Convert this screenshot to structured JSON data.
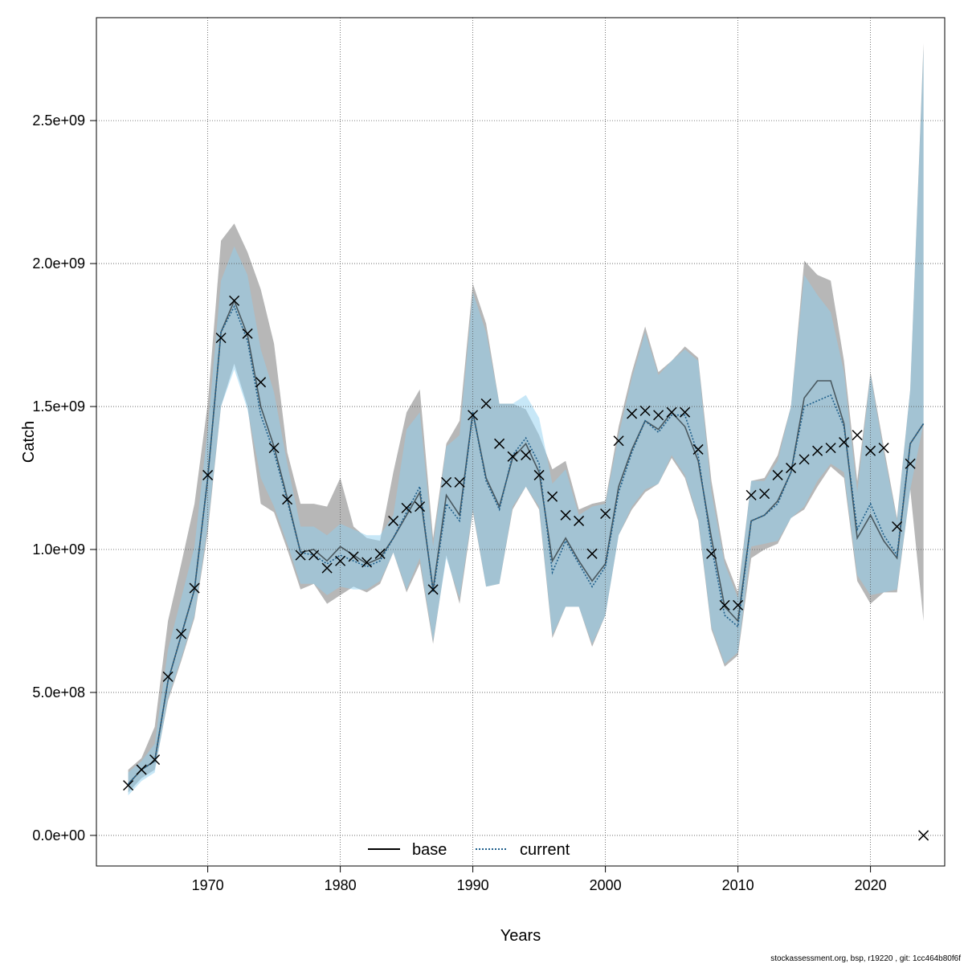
{
  "chart_data": {
    "type": "line",
    "xlabel": "Years",
    "ylabel": "Catch",
    "xlim": [
      1961.6,
      2025.6
    ],
    "ylim": [
      -107000000.0,
      2860000000.0
    ],
    "x_ticks": [
      1970,
      1980,
      1990,
      2000,
      2010,
      2020
    ],
    "x_tick_labels": [
      "1970",
      "1980",
      "1990",
      "2000",
      "2010",
      "2020"
    ],
    "y_ticks": [
      0,
      500000000,
      1000000000,
      1500000000,
      2000000000,
      2500000000
    ],
    "y_tick_labels": [
      "0.0e+00",
      "5.0e+08",
      "1.0e+09",
      "1.5e+09",
      "2.0e+09",
      "2.5e+09"
    ],
    "grid": true,
    "legend_position": "bottom-center",
    "legend": [
      {
        "label": "base",
        "style": "solid",
        "color": "#000000"
      },
      {
        "label": "current",
        "style": "dotted",
        "color": "#1f5f8b"
      }
    ],
    "years": [
      1964,
      1965,
      1966,
      1967,
      1968,
      1969,
      1970,
      1971,
      1972,
      1973,
      1974,
      1975,
      1976,
      1977,
      1978,
      1979,
      1980,
      1981,
      1982,
      1983,
      1984,
      1985,
      1986,
      1987,
      1988,
      1989,
      1990,
      1991,
      1992,
      1993,
      1994,
      1995,
      1996,
      1997,
      1998,
      1999,
      2000,
      2001,
      2002,
      2003,
      2004,
      2005,
      2006,
      2007,
      2008,
      2009,
      2010,
      2011,
      2012,
      2013,
      2014,
      2015,
      2016,
      2017,
      2018,
      2019,
      2020,
      2021,
      2022,
      2023,
      2024
    ],
    "series": [
      {
        "name": "base",
        "color": "#000000",
        "band_color": "#999999",
        "values": [
          180000000,
          230000000,
          260000000,
          540000000,
          700000000,
          860000000,
          1250000000,
          1760000000,
          1870000000,
          1750000000,
          1500000000,
          1360000000,
          1180000000,
          990000000,
          1000000000,
          960000000,
          1010000000,
          980000000,
          950000000,
          970000000,
          1040000000,
          1120000000,
          1200000000,
          860000000,
          1190000000,
          1120000000,
          1480000000,
          1250000000,
          1150000000,
          1320000000,
          1370000000,
          1270000000,
          960000000,
          1040000000,
          960000000,
          890000000,
          950000000,
          1220000000,
          1350000000,
          1450000000,
          1420000000,
          1480000000,
          1430000000,
          1310000000,
          1040000000,
          800000000,
          750000000,
          1100000000,
          1120000000,
          1170000000,
          1270000000,
          1530000000,
          1590000000,
          1590000000,
          1440000000,
          1040000000,
          1120000000,
          1030000000,
          970000000,
          1370000000,
          1440000000
        ],
        "lower": [
          150000000,
          200000000,
          230000000,
          470000000,
          610000000,
          760000000,
          1060000000,
          1500000000,
          1650000000,
          1500000000,
          1160000000,
          1130000000,
          1000000000,
          860000000,
          880000000,
          810000000,
          840000000,
          870000000,
          850000000,
          880000000,
          990000000,
          850000000,
          950000000,
          670000000,
          980000000,
          810000000,
          1130000000,
          870000000,
          880000000,
          1140000000,
          1220000000,
          1140000000,
          690000000,
          800000000,
          800000000,
          660000000,
          770000000,
          1050000000,
          1140000000,
          1200000000,
          1230000000,
          1320000000,
          1250000000,
          1100000000,
          720000000,
          590000000,
          630000000,
          970000000,
          1000000000,
          1020000000,
          1110000000,
          1140000000,
          1220000000,
          1290000000,
          1250000000,
          890000000,
          810000000,
          850000000,
          850000000,
          1210000000,
          750000000
        ],
        "upper": [
          230000000,
          270000000,
          380000000,
          750000000,
          950000000,
          1160000000,
          1510000000,
          2080000000,
          2140000000,
          2040000000,
          1910000000,
          1720000000,
          1340000000,
          1160000000,
          1160000000,
          1150000000,
          1250000000,
          1080000000,
          1040000000,
          1030000000,
          1270000000,
          1480000000,
          1560000000,
          1040000000,
          1370000000,
          1450000000,
          1930000000,
          1790000000,
          1510000000,
          1510000000,
          1490000000,
          1400000000,
          1280000000,
          1310000000,
          1140000000,
          1160000000,
          1170000000,
          1430000000,
          1620000000,
          1780000000,
          1620000000,
          1660000000,
          1710000000,
          1670000000,
          1240000000,
          970000000,
          850000000,
          1240000000,
          1250000000,
          1330000000,
          1500000000,
          2010000000,
          1960000000,
          1940000000,
          1660000000,
          1240000000,
          1620000000,
          1360000000,
          1110000000,
          1560000000,
          2770000000
        ]
      },
      {
        "name": "current",
        "color": "#1f5f8b",
        "band_color": "#8fcff0",
        "values": [
          180000000,
          230000000,
          260000000,
          540000000,
          700000000,
          860000000,
          1250000000,
          1760000000,
          1850000000,
          1730000000,
          1470000000,
          1340000000,
          1170000000,
          990000000,
          980000000,
          950000000,
          980000000,
          960000000,
          940000000,
          960000000,
          1040000000,
          1130000000,
          1220000000,
          850000000,
          1160000000,
          1100000000,
          1480000000,
          1240000000,
          1140000000,
          1330000000,
          1390000000,
          1300000000,
          920000000,
          1030000000,
          950000000,
          870000000,
          940000000,
          1200000000,
          1340000000,
          1450000000,
          1410000000,
          1470000000,
          1470000000,
          1330000000,
          1010000000,
          770000000,
          730000000,
          1100000000,
          1120000000,
          1160000000,
          1270000000,
          1500000000,
          1520000000,
          1540000000,
          1430000000,
          1070000000,
          1160000000,
          1050000000,
          980000000,
          1370000000,
          1440000000
        ],
        "lower": [
          140000000,
          190000000,
          220000000,
          480000000,
          620000000,
          770000000,
          1080000000,
          1500000000,
          1630000000,
          1490000000,
          1250000000,
          1150000000,
          1020000000,
          880000000,
          880000000,
          840000000,
          870000000,
          860000000,
          860000000,
          890000000,
          990000000,
          860000000,
          970000000,
          680000000,
          970000000,
          830000000,
          1140000000,
          870000000,
          880000000,
          1150000000,
          1220000000,
          1150000000,
          700000000,
          800000000,
          800000000,
          670000000,
          770000000,
          1050000000,
          1150000000,
          1210000000,
          1230000000,
          1330000000,
          1260000000,
          1110000000,
          730000000,
          600000000,
          640000000,
          1010000000,
          1020000000,
          1030000000,
          1110000000,
          1150000000,
          1240000000,
          1300000000,
          1270000000,
          910000000,
          840000000,
          850000000,
          860000000,
          1210000000,
          1440000000
        ],
        "upper": [
          220000000,
          260000000,
          320000000,
          650000000,
          830000000,
          1010000000,
          1420000000,
          1940000000,
          2060000000,
          1960000000,
          1700000000,
          1550000000,
          1300000000,
          1080000000,
          1080000000,
          1050000000,
          1090000000,
          1070000000,
          1050000000,
          1050000000,
          1120000000,
          1420000000,
          1480000000,
          1010000000,
          1360000000,
          1400000000,
          1900000000,
          1760000000,
          1510000000,
          1510000000,
          1540000000,
          1460000000,
          1230000000,
          1280000000,
          1120000000,
          1150000000,
          1160000000,
          1400000000,
          1600000000,
          1760000000,
          1610000000,
          1660000000,
          1700000000,
          1660000000,
          1200000000,
          950000000,
          830000000,
          1240000000,
          1240000000,
          1310000000,
          1500000000,
          1960000000,
          1890000000,
          1830000000,
          1620000000,
          1200000000,
          1610000000,
          1340000000,
          1100000000,
          1560000000,
          2750000000
        ]
      }
    ],
    "observed": {
      "name": "observed catch",
      "marker": "x",
      "values": [
        175000000,
        230000000,
        265000000,
        555000000,
        705000000,
        865000000,
        1260000000,
        1740000000,
        1870000000,
        1755000000,
        1585000000,
        1355000000,
        1175000000,
        980000000,
        980000000,
        935000000,
        960000000,
        975000000,
        955000000,
        985000000,
        1100000000,
        1145000000,
        1150000000,
        860000000,
        1235000000,
        1235000000,
        1470000000,
        1510000000,
        1370000000,
        1325000000,
        1330000000,
        1260000000,
        1185000000,
        1120000000,
        1100000000,
        985000000,
        1125000000,
        1380000000,
        1475000000,
        1485000000,
        1470000000,
        1480000000,
        1480000000,
        1350000000,
        985000000,
        805000000,
        805000000,
        1190000000,
        1195000000,
        1260000000,
        1285000000,
        1315000000,
        1345000000,
        1355000000,
        1375000000,
        1400000000,
        1345000000,
        1355000000,
        1080000000,
        1300000000,
        0
      ]
    }
  },
  "footer": {
    "text": "stockassessment.org, bsp, r19220 , git: 1cc464b80f6f"
  }
}
